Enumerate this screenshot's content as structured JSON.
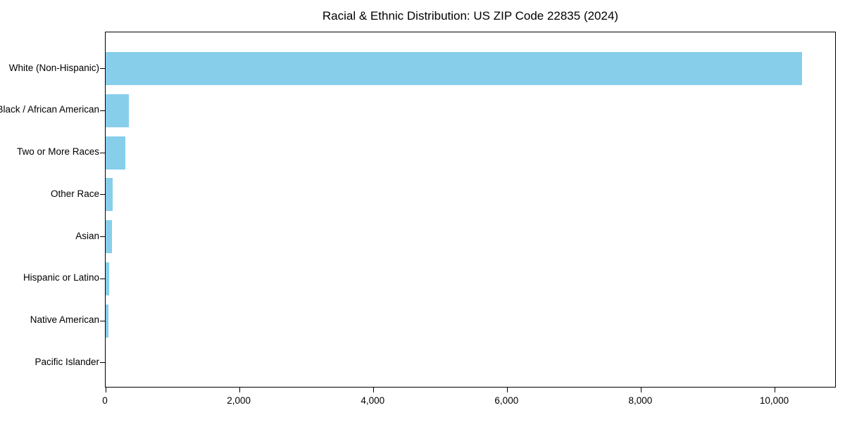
{
  "chart_data": {
    "type": "bar",
    "orientation": "horizontal",
    "title": "Racial & Ethnic Distribution: US ZIP Code 22835 (2024)",
    "xlabel": "",
    "ylabel": "",
    "categories": [
      "White (Non-Hispanic)",
      "Black / African American",
      "Two or More Races",
      "Other Race",
      "Asian",
      "Hispanic or Latino",
      "Native American",
      "Pacific Islander"
    ],
    "values": [
      10400,
      345,
      290,
      100,
      95,
      48,
      40,
      0
    ],
    "xlim": [
      0,
      10920
    ],
    "xticks": [
      0,
      2000,
      4000,
      6000,
      8000,
      10000
    ],
    "xtick_labels": [
      "0",
      "2,000",
      "4,000",
      "6,000",
      "8,000",
      "10,000"
    ],
    "bar_color": "#87CEEB",
    "axis_color": "#000000",
    "background_color": "#ffffff",
    "grid": false,
    "legend": "none",
    "value_labels": "none"
  }
}
